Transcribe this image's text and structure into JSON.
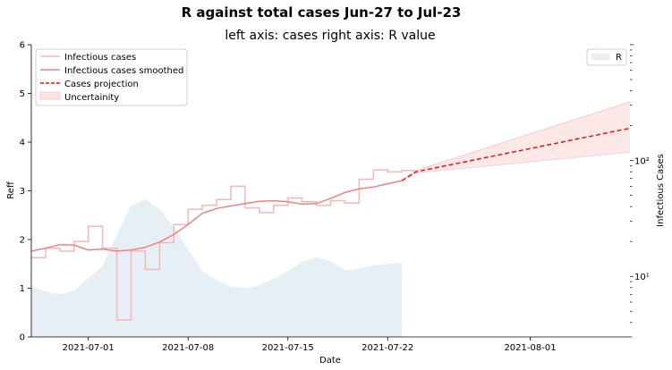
{
  "chart_data": {
    "type": "line",
    "title": "R against total cases Jun-27 to Jul-23",
    "subtitle": "left axis: cases right axis: R value",
    "xlabel": "Date",
    "ylabel_left": "Reff",
    "ylabel_right": "Infectious Cases",
    "x_start": "2021-06-27",
    "x_end": "2021-08-08",
    "x_ticks": [
      "2021-07-01",
      "2021-07-08",
      "2021-07-15",
      "2021-07-22",
      "2021-08-01"
    ],
    "ylim_left": [
      0,
      6
    ],
    "yticks_left": [
      "0",
      "1",
      "2",
      "3",
      "4",
      "5",
      "6"
    ],
    "right_axis_scale": "log",
    "ylim_right": [
      3,
      1000
    ],
    "yticks_right": [
      "10¹",
      "10²"
    ],
    "legend_left": {
      "placement": "top-left",
      "entries": [
        "Infectious cases",
        "Infectious cases smoothed",
        "Cases projection",
        "Uncertainity"
      ]
    },
    "legend_right": {
      "placement": "top-right",
      "entries": [
        "R"
      ]
    },
    "series": [
      {
        "name": "R",
        "axis": "left",
        "style": "area",
        "color": "#e6eef6",
        "points": [
          [
            "2021-06-27",
            1.02
          ],
          [
            "2021-06-28",
            0.93
          ],
          [
            "2021-06-29",
            0.88
          ],
          [
            "2021-06-30",
            0.95
          ],
          [
            "2021-07-01",
            1.2
          ],
          [
            "2021-07-02",
            1.45
          ],
          [
            "2021-07-03",
            2.1
          ],
          [
            "2021-07-04",
            2.7
          ],
          [
            "2021-07-05",
            2.83
          ],
          [
            "2021-07-06",
            2.62
          ],
          [
            "2021-07-07",
            2.25
          ],
          [
            "2021-07-08",
            1.8
          ],
          [
            "2021-07-09",
            1.35
          ],
          [
            "2021-07-10",
            1.17
          ],
          [
            "2021-07-11",
            1.03
          ],
          [
            "2021-07-12",
            1.0
          ],
          [
            "2021-07-13",
            1.06
          ],
          [
            "2021-07-14",
            1.2
          ],
          [
            "2021-07-15",
            1.35
          ],
          [
            "2021-07-16",
            1.54
          ],
          [
            "2021-07-17",
            1.64
          ],
          [
            "2021-07-18",
            1.55
          ],
          [
            "2021-07-19",
            1.37
          ],
          [
            "2021-07-20",
            1.4
          ],
          [
            "2021-07-21",
            1.47
          ],
          [
            "2021-07-22",
            1.5
          ],
          [
            "2021-07-23",
            1.52
          ]
        ]
      },
      {
        "name": "Infectious cases",
        "axis": "right",
        "style": "step",
        "color": "#f4b8b8",
        "points": [
          [
            "2021-06-27",
            14.5
          ],
          [
            "2021-06-28",
            17.5
          ],
          [
            "2021-06-29",
            16.5
          ],
          [
            "2021-06-30",
            20.0
          ],
          [
            "2021-07-01",
            27.0
          ],
          [
            "2021-07-02",
            17.5
          ],
          [
            "2021-07-03",
            4.2
          ],
          [
            "2021-07-04",
            16.5
          ],
          [
            "2021-07-05",
            11.5
          ],
          [
            "2021-07-06",
            19.5
          ],
          [
            "2021-07-07",
            28.0
          ],
          [
            "2021-07-08",
            38.0
          ],
          [
            "2021-07-09",
            41.0
          ],
          [
            "2021-07-10",
            46.0
          ],
          [
            "2021-07-11",
            60.0
          ],
          [
            "2021-07-12",
            39.0
          ],
          [
            "2021-07-13",
            35.5
          ],
          [
            "2021-07-14",
            41.0
          ],
          [
            "2021-07-15",
            47.5
          ],
          [
            "2021-07-16",
            44.0
          ],
          [
            "2021-07-17",
            41.0
          ],
          [
            "2021-07-18",
            45.0
          ],
          [
            "2021-07-19",
            43.0
          ],
          [
            "2021-07-20",
            69.0
          ],
          [
            "2021-07-21",
            83.0
          ],
          [
            "2021-07-22",
            80.0
          ],
          [
            "2021-07-23",
            82.0
          ]
        ]
      },
      {
        "name": "Infectious cases smoothed",
        "axis": "right",
        "style": "line",
        "color": "#f08080",
        "points": [
          [
            "2021-06-27",
            16.5
          ],
          [
            "2021-06-28",
            17.5
          ],
          [
            "2021-06-29",
            18.8
          ],
          [
            "2021-06-30",
            18.6
          ],
          [
            "2021-07-01",
            16.9
          ],
          [
            "2021-07-02",
            17.2
          ],
          [
            "2021-07-03",
            16.5
          ],
          [
            "2021-07-04",
            16.9
          ],
          [
            "2021-07-05",
            17.8
          ],
          [
            "2021-07-06",
            19.8
          ],
          [
            "2021-07-07",
            23.0
          ],
          [
            "2021-07-08",
            28.0
          ],
          [
            "2021-07-09",
            35.0
          ],
          [
            "2021-07-10",
            38.5
          ],
          [
            "2021-07-11",
            40.5
          ],
          [
            "2021-07-12",
            42.5
          ],
          [
            "2021-07-13",
            44.5
          ],
          [
            "2021-07-14",
            45.0
          ],
          [
            "2021-07-15",
            44.0
          ],
          [
            "2021-07-16",
            42.0
          ],
          [
            "2021-07-17",
            42.5
          ],
          [
            "2021-07-18",
            47.0
          ],
          [
            "2021-07-19",
            53.0
          ],
          [
            "2021-07-20",
            57.0
          ],
          [
            "2021-07-21",
            59.0
          ],
          [
            "2021-07-22",
            63.0
          ],
          [
            "2021-07-23",
            67.0
          ]
        ]
      },
      {
        "name": "Cases projection",
        "axis": "right",
        "style": "dashed",
        "color": "#ee1111",
        "points": [
          [
            "2021-07-23",
            67.0
          ],
          [
            "2021-07-24",
            80.0
          ],
          [
            "2021-08-08",
            190.0
          ]
        ]
      }
    ],
    "uncertainty": {
      "name": "Uncertainity",
      "axis": "right",
      "color": "#fde2e2",
      "upper": [
        [
          "2021-07-23",
          67.0
        ],
        [
          "2021-07-24",
          82.0
        ],
        [
          "2021-08-08",
          320.0
        ]
      ],
      "lower": [
        [
          "2021-07-23",
          67.0
        ],
        [
          "2021-07-24",
          78.0
        ],
        [
          "2021-08-08",
          118.0
        ]
      ]
    }
  }
}
